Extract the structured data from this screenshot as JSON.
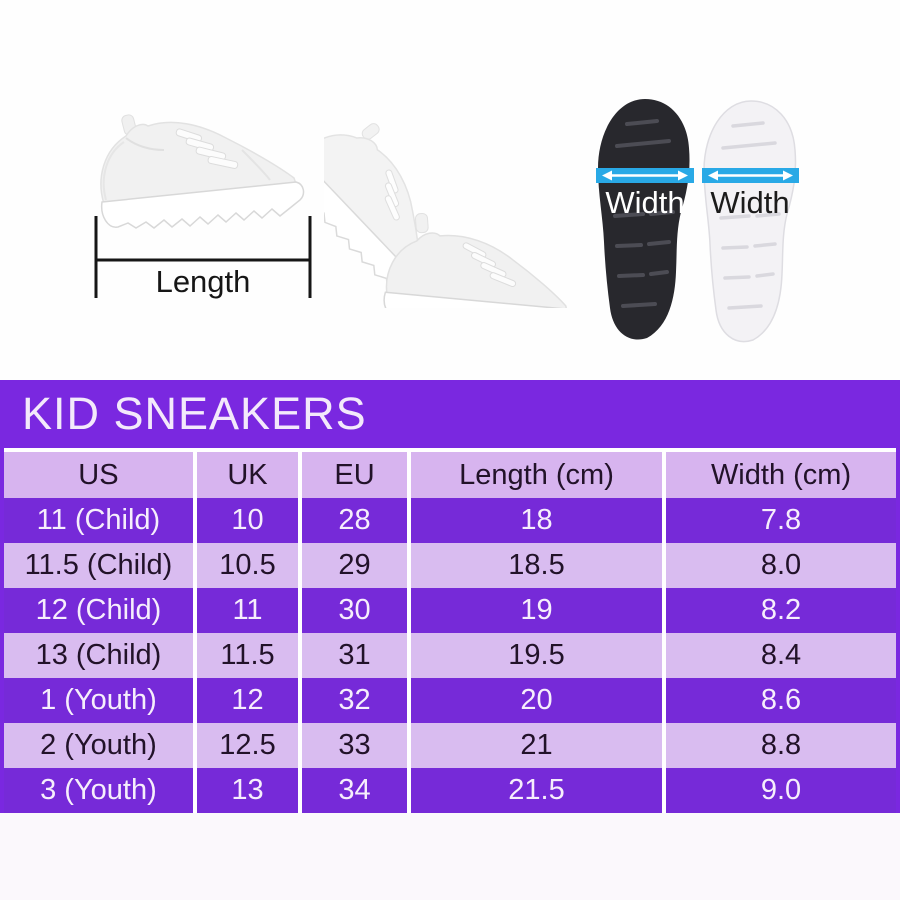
{
  "title": "KID SNEAKERS",
  "photos": {
    "length_label": "Length",
    "sole_left_width_label": "Width",
    "sole_right_width_label": "Width"
  },
  "table": {
    "columns": [
      "US",
      "UK",
      "EU",
      "Length (cm)",
      "Width (cm)"
    ],
    "rows": [
      [
        "11 (Child)",
        "10",
        "28",
        "18",
        "7.8"
      ],
      [
        "11.5 (Child)",
        "10.5",
        "29",
        "18.5",
        "8.0"
      ],
      [
        "12 (Child)",
        "11",
        "30",
        "19",
        "8.2"
      ],
      [
        "13 (Child)",
        "11.5",
        "31",
        "19.5",
        "8.4"
      ],
      [
        "1 (Youth)",
        "12",
        "32",
        "20",
        "8.6"
      ],
      [
        "2 (Youth)",
        "12.5",
        "33",
        "21",
        "8.8"
      ],
      [
        "3 (Youth)",
        "13",
        "34",
        "21.5",
        "9.0"
      ]
    ]
  },
  "colors": {
    "banner_purple": "#7a28e0",
    "row_dark_purple": "#762ad8",
    "row_light_purple": "#d9bcf0",
    "header_purple": "#d7b4ef",
    "text_on_dark": "#f6eefc",
    "text_on_light": "#221229",
    "width_band_cyan": "#29a9e6"
  }
}
